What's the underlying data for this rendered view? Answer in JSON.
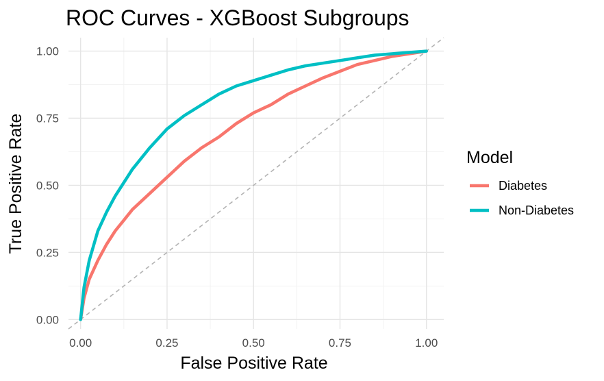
{
  "chart_data": {
    "type": "line",
    "title": "ROC Curves - XGBoost Subgroups",
    "xlabel": "False Positive Rate",
    "ylabel": "True Positive Rate",
    "xlim": [
      -0.035,
      1.05
    ],
    "ylim": [
      -0.035,
      1.05
    ],
    "x_ticks": [
      "0.00",
      "0.25",
      "0.50",
      "0.75",
      "1.00"
    ],
    "y_ticks": [
      "0.00",
      "0.25",
      "0.50",
      "0.75",
      "1.00"
    ],
    "grid": true,
    "reference_line": {
      "from": [
        0,
        0
      ],
      "to": [
        1,
        1
      ],
      "style": "dashed",
      "color": "#b3b3b3"
    },
    "legend": {
      "title": "Model",
      "placement": "right",
      "entries": [
        "Diabetes",
        "Non-Diabetes"
      ]
    },
    "series": [
      {
        "name": "Diabetes",
        "color": "#F8766D",
        "x": [
          0,
          0.01,
          0.025,
          0.05,
          0.075,
          0.1,
          0.125,
          0.15,
          0.2,
          0.25,
          0.3,
          0.35,
          0.4,
          0.45,
          0.5,
          0.55,
          0.6,
          0.65,
          0.7,
          0.75,
          0.8,
          0.85,
          0.9,
          0.95,
          1.0
        ],
        "y": [
          0,
          0.08,
          0.15,
          0.22,
          0.28,
          0.33,
          0.37,
          0.41,
          0.47,
          0.53,
          0.59,
          0.64,
          0.68,
          0.73,
          0.77,
          0.8,
          0.84,
          0.87,
          0.9,
          0.925,
          0.95,
          0.965,
          0.98,
          0.99,
          1.0
        ]
      },
      {
        "name": "Non-Diabetes",
        "color": "#00BFC4",
        "x": [
          0,
          0.01,
          0.025,
          0.05,
          0.075,
          0.1,
          0.125,
          0.15,
          0.2,
          0.25,
          0.3,
          0.35,
          0.4,
          0.45,
          0.5,
          0.55,
          0.6,
          0.65,
          0.7,
          0.75,
          0.8,
          0.85,
          0.9,
          0.95,
          1.0
        ],
        "y": [
          0,
          0.12,
          0.22,
          0.33,
          0.4,
          0.46,
          0.51,
          0.56,
          0.64,
          0.71,
          0.76,
          0.8,
          0.84,
          0.87,
          0.89,
          0.91,
          0.93,
          0.945,
          0.955,
          0.965,
          0.975,
          0.985,
          0.99,
          0.995,
          1.0
        ]
      }
    ]
  }
}
